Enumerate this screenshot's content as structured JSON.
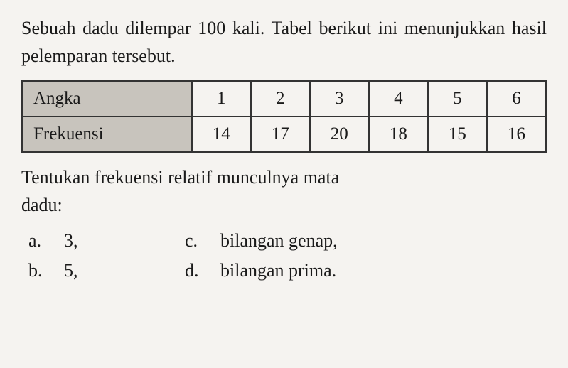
{
  "intro": {
    "line1": "Sebuah dadu dilempar 100 kali. Tabel berikut",
    "line2": "ini menunjukkan hasil pelemparan tersebut."
  },
  "table": {
    "row1_header": "Angka",
    "row2_header": "Frekuensi",
    "columns": [
      "1",
      "2",
      "3",
      "4",
      "5",
      "6"
    ],
    "values": [
      "14",
      "17",
      "20",
      "18",
      "15",
      "16"
    ],
    "header_bg_color": "#c8c4bd",
    "border_color": "#333333",
    "cell_fontsize": 25
  },
  "question": {
    "line1": "Tentukan frekuensi relatif munculnya mata",
    "line2": "dadu:"
  },
  "options": {
    "a": {
      "label": "a.",
      "text": "3,"
    },
    "b": {
      "label": "b.",
      "text": "5,"
    },
    "c": {
      "label": "c.",
      "text": "bilangan genap,"
    },
    "d": {
      "label": "d.",
      "text": "bilangan prima."
    }
  },
  "styling": {
    "background_color": "#f5f3f0",
    "text_color": "#1a1a1a",
    "body_fontsize": 26,
    "font_family": "Georgia, Times New Roman, serif"
  }
}
